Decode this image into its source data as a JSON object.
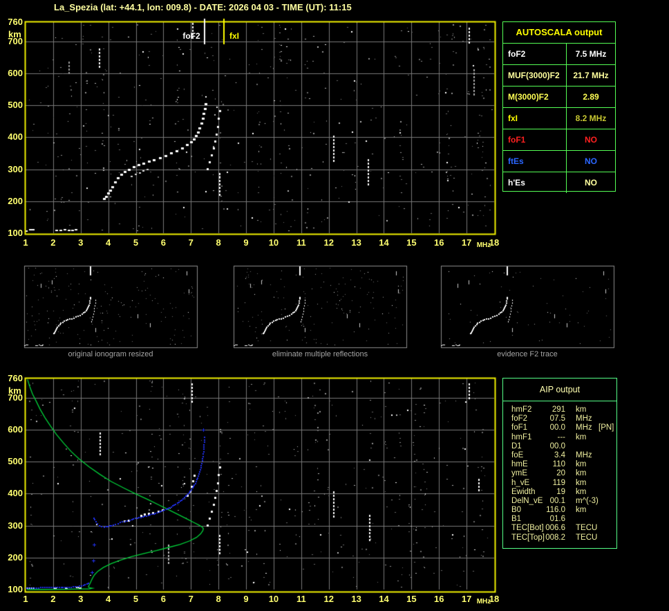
{
  "title": "La_Spezia (lat: +44.1, lon: 009.8) - DATE: 2026 04 03 - TIME (UT): 11:15",
  "colors": {
    "plot_border": "#f2f200",
    "grid": "#7a7a7a",
    "tick_label": "#ffff70",
    "title_yellow": "#ffffa0",
    "table_border_green": "#55ff55",
    "caption_gray": "#a6a6a6",
    "trace_white": "#ffffff",
    "profile_green": "#00d23a",
    "restored_trace_blue": "#2030f0",
    "marker_fof2": "#ffffff",
    "marker_fxi": "#ffff00"
  },
  "autoscala_table": {
    "header": "AUTOSCALA output",
    "rows": [
      {
        "label": "foF2",
        "value": "7.5 MHz",
        "label_color": "#ffffff",
        "value_color": "#ffffff"
      },
      {
        "label": "MUF(3000)F2",
        "value": "21.7 MHz",
        "label_color": "#ffff9e",
        "value_color": "#ffff9e"
      },
      {
        "label": "M(3000)F2",
        "value": "2.89",
        "label_color": "#ffff55",
        "value_color": "#ffff55"
      },
      {
        "label": "fxI",
        "value": "8.2 MHz",
        "label_color": "#ffff00",
        "value_color": "#c8c832"
      },
      {
        "label": "foF1",
        "value": "NO",
        "label_color": "#ff2020",
        "value_color": "#ff2020"
      },
      {
        "label": "ftEs",
        "value": "NO",
        "label_color": "#2b66ff",
        "value_color": "#2b66ff"
      },
      {
        "label": "h'Es",
        "value": "NO",
        "label_color": "#ffffff",
        "value_color": "#ffff9e"
      }
    ]
  },
  "aip_table": {
    "header": "AIP output",
    "rows": [
      {
        "label": "hmF2",
        "value": "291",
        "unit": "km",
        "note": ""
      },
      {
        "label": "foF2",
        "value": "07.5",
        "unit": "MHz",
        "note": ""
      },
      {
        "label": "foF1",
        "value": "00.0",
        "unit": "MHz",
        "note": "[PN]"
      },
      {
        "label": "hmF1",
        "value": "---",
        "unit": "km",
        "note": ""
      },
      {
        "label": "D1",
        "value": "00.0",
        "unit": "",
        "note": ""
      },
      {
        "label": "foE",
        "value": "3.4",
        "unit": "MHz",
        "note": ""
      },
      {
        "label": "hmE",
        "value": "110",
        "unit": "km",
        "note": ""
      },
      {
        "label": "ymE",
        "value": "20",
        "unit": "km",
        "note": ""
      },
      {
        "label": "h_vE",
        "value": "119",
        "unit": "km",
        "note": ""
      },
      {
        "label": "Ewidth",
        "value": "19",
        "unit": "km",
        "note": ""
      },
      {
        "label": "DelN_vE",
        "value": "00.1",
        "unit": "m^(-3)",
        "note": ""
      },
      {
        "label": "B0",
        "value": "116.0",
        "unit": "km",
        "note": ""
      },
      {
        "label": "B1",
        "value": "01.6",
        "unit": "",
        "note": ""
      },
      {
        "label": "TEC[Bot]",
        "value": "006.6",
        "unit": "TECU",
        "note": ""
      },
      {
        "label": "TEC[Top]",
        "value": "008.2",
        "unit": "TECU",
        "note": ""
      }
    ]
  },
  "thumbnails": [
    {
      "caption": "original ionogram resized"
    },
    {
      "caption": "eliminate multiple reflections"
    },
    {
      "caption": "evidence F2 trace"
    }
  ],
  "chart_data": [
    {
      "id": "main_ionogram",
      "type": "scatter",
      "xlabel": "MHz",
      "ylabel": "km",
      "xlim": [
        1,
        18
      ],
      "ylim": [
        100,
        760
      ],
      "grid": true,
      "x_ticks": [
        1,
        2,
        3,
        4,
        5,
        6,
        7,
        8,
        9,
        10,
        11,
        12,
        13,
        14,
        15,
        16,
        17,
        18
      ],
      "y_ticks": [
        760,
        700,
        600,
        500,
        400,
        300,
        200,
        100
      ],
      "markers": [
        {
          "label": "foF2",
          "mhz": 7.5,
          "color": "#ffffff"
        },
        {
          "label": "fxI",
          "mhz": 8.2,
          "color": "#ffff00"
        }
      ],
      "o_trace_mhz_km": [
        [
          3.88,
          206
        ],
        [
          3.95,
          212
        ],
        [
          4.03,
          223
        ],
        [
          4.1,
          232
        ],
        [
          4.18,
          243
        ],
        [
          4.27,
          258
        ],
        [
          4.38,
          270
        ],
        [
          4.5,
          281
        ],
        [
          4.62,
          290
        ],
        [
          4.78,
          298
        ],
        [
          4.95,
          305
        ],
        [
          5.12,
          311
        ],
        [
          5.3,
          317
        ],
        [
          5.5,
          323
        ],
        [
          5.68,
          327
        ],
        [
          5.9,
          333
        ],
        [
          6.1,
          340
        ],
        [
          6.3,
          348
        ],
        [
          6.5,
          356
        ],
        [
          6.7,
          364
        ],
        [
          6.88,
          374
        ],
        [
          7.02,
          383
        ],
        [
          7.12,
          392
        ],
        [
          7.2,
          402
        ],
        [
          7.28,
          414
        ],
        [
          7.34,
          427
        ],
        [
          7.4,
          441
        ],
        [
          7.45,
          456
        ],
        [
          7.49,
          472
        ],
        [
          7.52,
          488
        ],
        [
          7.55,
          503
        ]
      ],
      "second_branch_mhz_km": [
        [
          4.85,
          276
        ],
        [
          5.0,
          282
        ],
        [
          5.15,
          288
        ],
        [
          5.3,
          293
        ],
        [
          5.45,
          297
        ]
      ],
      "x_trace_mhz_km": [
        [
          7.62,
          300
        ],
        [
          7.7,
          320
        ],
        [
          7.78,
          342
        ],
        [
          7.85,
          364
        ],
        [
          7.9,
          386
        ],
        [
          7.95,
          408
        ],
        [
          8.0,
          432
        ],
        [
          8.03,
          456
        ],
        [
          8.06,
          480
        ]
      ],
      "e_trace_mhz_km": [
        [
          1.05,
          106
        ],
        [
          1.2,
          110
        ],
        [
          1.3,
          109
        ],
        [
          2.15,
          108
        ],
        [
          2.3,
          107
        ],
        [
          2.45,
          109
        ],
        [
          2.6,
          107
        ],
        [
          2.72,
          108
        ],
        [
          2.85,
          109
        ]
      ],
      "streaks_mhz_km": [
        [
          7.09,
          703,
          757,
          "#ffffff"
        ],
        [
          3.7,
          612,
          676,
          "#ffffff"
        ],
        [
          8.05,
          214,
          287,
          "#ffffff"
        ],
        [
          12.2,
          328,
          405,
          "#ffffff"
        ],
        [
          13.45,
          252,
          330,
          "#ffffff"
        ],
        [
          17.1,
          698,
          742,
          "#ffffff"
        ],
        [
          17.28,
          528,
          612,
          "#aaaaaa"
        ],
        [
          2.6,
          598,
          635,
          "#999999"
        ]
      ]
    },
    {
      "id": "profile_ionogram",
      "type": "scatter",
      "xlabel": "MHz",
      "ylabel": "km",
      "xlim": [
        1,
        18
      ],
      "ylim": [
        100,
        760
      ],
      "grid": true,
      "x_ticks": [
        1,
        2,
        3,
        4,
        5,
        6,
        7,
        8,
        9,
        10,
        11,
        12,
        13,
        14,
        15,
        16,
        17,
        18
      ],
      "y_ticks": [
        760,
        700,
        600,
        500,
        400,
        300,
        200,
        100
      ],
      "green_profile_mhz_km": [
        [
          1.07,
          757
        ],
        [
          1.15,
          735
        ],
        [
          1.25,
          712
        ],
        [
          1.38,
          690
        ],
        [
          1.52,
          665
        ],
        [
          1.7,
          638
        ],
        [
          1.9,
          612
        ],
        [
          2.12,
          585
        ],
        [
          2.38,
          558
        ],
        [
          2.65,
          532
        ],
        [
          2.95,
          508
        ],
        [
          3.3,
          484
        ],
        [
          3.7,
          460
        ],
        [
          4.1,
          438
        ],
        [
          4.55,
          418
        ],
        [
          5.0,
          399
        ],
        [
          5.45,
          381
        ],
        [
          5.85,
          364
        ],
        [
          6.2,
          349
        ],
        [
          6.55,
          334
        ],
        [
          6.85,
          321
        ],
        [
          7.1,
          310
        ],
        [
          7.28,
          302
        ],
        [
          7.4,
          296
        ],
        [
          7.45,
          291
        ],
        [
          7.43,
          284
        ],
        [
          7.35,
          274
        ],
        [
          7.2,
          263
        ],
        [
          6.95,
          252
        ],
        [
          6.6,
          241
        ],
        [
          6.2,
          232
        ],
        [
          5.75,
          222
        ],
        [
          5.3,
          213
        ],
        [
          4.85,
          203
        ],
        [
          4.45,
          192
        ],
        [
          4.1,
          181
        ],
        [
          3.82,
          169
        ],
        [
          3.62,
          157
        ],
        [
          3.5,
          146
        ],
        [
          3.43,
          136
        ],
        [
          3.38,
          127
        ],
        [
          3.34,
          119
        ],
        [
          3.3,
          113
        ],
        [
          3.28,
          108
        ],
        [
          3.34,
          105
        ],
        [
          3.42,
          104
        ],
        [
          3.3,
          102
        ],
        [
          3.0,
          102
        ],
        [
          2.4,
          101
        ],
        [
          1.6,
          100
        ],
        [
          1.05,
          100
        ]
      ],
      "blue_e_segment_mhz_km": [
        [
          1.05,
          104
        ],
        [
          2.6,
          105
        ],
        [
          3.05,
          110
        ],
        [
          3.3,
          118
        ]
      ],
      "blue_f_trace_mhz_km": [
        [
          3.5,
          322
        ],
        [
          3.56,
          312
        ],
        [
          3.62,
          305
        ],
        [
          3.7,
          299
        ],
        [
          3.78,
          295
        ],
        [
          3.88,
          294
        ],
        [
          4.0,
          296
        ],
        [
          4.12,
          299
        ],
        [
          4.28,
          303
        ],
        [
          4.45,
          308
        ],
        [
          4.62,
          312
        ],
        [
          4.8,
          316
        ],
        [
          5.0,
          321
        ],
        [
          5.2,
          325
        ],
        [
          5.4,
          329
        ],
        [
          5.6,
          334
        ],
        [
          5.8,
          339
        ],
        [
          6.0,
          345
        ],
        [
          6.18,
          352
        ],
        [
          6.35,
          360
        ],
        [
          6.52,
          369
        ],
        [
          6.68,
          379
        ],
        [
          6.82,
          390
        ],
        [
          6.95,
          402
        ],
        [
          7.07,
          416
        ],
        [
          7.17,
          431
        ],
        [
          7.26,
          448
        ],
        [
          7.33,
          466
        ],
        [
          7.39,
          486
        ],
        [
          7.44,
          508
        ],
        [
          7.47,
          530
        ],
        [
          7.49,
          552
        ],
        [
          7.51,
          574
        ]
      ],
      "blue_scatter_mhz_km": [
        [
          3.42,
          152
        ],
        [
          3.48,
          190
        ],
        [
          3.5,
          240
        ],
        [
          7.46,
          598
        ]
      ],
      "f_echo_mhz_km": [
        [
          4.6,
          312
        ],
        [
          4.75,
          315
        ],
        [
          5.2,
          330
        ],
        [
          5.35,
          333
        ],
        [
          5.5,
          336
        ],
        [
          5.65,
          339
        ],
        [
          5.85,
          343
        ],
        [
          6.0,
          347
        ],
        [
          6.9,
          392
        ],
        [
          7.0,
          405
        ],
        [
          7.05,
          420
        ],
        [
          7.1,
          437
        ],
        [
          7.15,
          455
        ]
      ],
      "x_trace_mhz_km": [
        [
          7.62,
          300
        ],
        [
          7.7,
          320
        ],
        [
          7.78,
          342
        ],
        [
          7.85,
          364
        ],
        [
          7.9,
          386
        ],
        [
          7.95,
          408
        ],
        [
          8.0,
          432
        ],
        [
          8.03,
          456
        ],
        [
          8.06,
          480
        ]
      ],
      "e_white_mhz_km": [
        [
          1.1,
          103
        ],
        [
          1.18,
          104
        ],
        [
          1.3,
          103
        ],
        [
          2.1,
          104
        ],
        [
          2.5,
          103
        ],
        [
          2.9,
          105
        ],
        [
          3.0,
          104
        ]
      ],
      "streaks_mhz_km": [
        [
          7.05,
          688,
          744,
          "#ffffff"
        ],
        [
          3.73,
          524,
          590,
          "#ffffff"
        ],
        [
          8.05,
          214,
          270,
          "#ffffff"
        ],
        [
          12.2,
          326,
          406,
          "#ffffff"
        ],
        [
          13.5,
          250,
          332,
          "#ffffff"
        ],
        [
          17.1,
          690,
          744,
          "#ffffff"
        ],
        [
          17.45,
          408,
          446,
          "#ffffff"
        ],
        [
          6.2,
          180,
          240,
          "#bbbbbb"
        ]
      ]
    }
  ]
}
